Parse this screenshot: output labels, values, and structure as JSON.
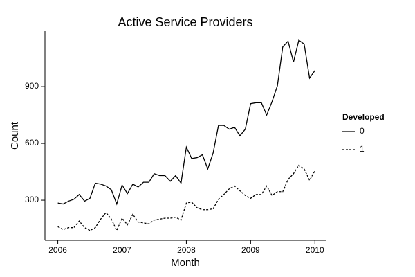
{
  "chart_data": {
    "type": "line",
    "title": "Active Service Providers",
    "x_label": "Month",
    "y_label": "Count",
    "legend_title": "Developed",
    "legend": "right",
    "x": [
      2006,
      2006.083,
      2006.167,
      2006.25,
      2006.333,
      2006.417,
      2006.5,
      2006.583,
      2006.667,
      2006.75,
      2006.833,
      2006.917,
      2007,
      2007.083,
      2007.167,
      2007.25,
      2007.333,
      2007.417,
      2007.5,
      2007.583,
      2007.667,
      2007.75,
      2007.833,
      2007.917,
      2008,
      2008.083,
      2008.167,
      2008.25,
      2008.333,
      2008.417,
      2008.5,
      2008.583,
      2008.667,
      2008.75,
      2008.833,
      2008.917,
      2009,
      2009.083,
      2009.167,
      2009.25,
      2009.333,
      2009.417,
      2009.5,
      2009.583,
      2009.667,
      2009.75,
      2009.833,
      2009.917,
      2010
    ],
    "series": [
      {
        "name": "0",
        "color": "#000000",
        "dash": "solid",
        "values": [
          285,
          280,
          295,
          305,
          330,
          295,
          310,
          390,
          385,
          375,
          355,
          280,
          380,
          335,
          385,
          370,
          395,
          395,
          440,
          430,
          430,
          400,
          430,
          390,
          580,
          520,
          525,
          540,
          465,
          550,
          695,
          695,
          675,
          685,
          640,
          675,
          810,
          815,
          815,
          750,
          820,
          905,
          1110,
          1140,
          1030,
          1145,
          1125,
          945,
          985
        ]
      },
      {
        "name": "1",
        "color": "#000000",
        "dash": "dashed",
        "values": [
          160,
          145,
          155,
          155,
          190,
          155,
          140,
          155,
          200,
          235,
          200,
          140,
          205,
          170,
          225,
          185,
          180,
          175,
          195,
          200,
          205,
          205,
          210,
          195,
          285,
          290,
          260,
          250,
          250,
          255,
          305,
          330,
          360,
          375,
          350,
          325,
          310,
          330,
          330,
          375,
          325,
          345,
          345,
          410,
          440,
          485,
          465,
          405,
          455
        ]
      }
    ],
    "xlim": [
      2005.8,
      2010.18
    ],
    "xticks": [
      2006,
      2007,
      2008,
      2009,
      2010
    ],
    "ylim": [
      88,
      1193
    ],
    "yticks": [
      300,
      600,
      900
    ]
  }
}
